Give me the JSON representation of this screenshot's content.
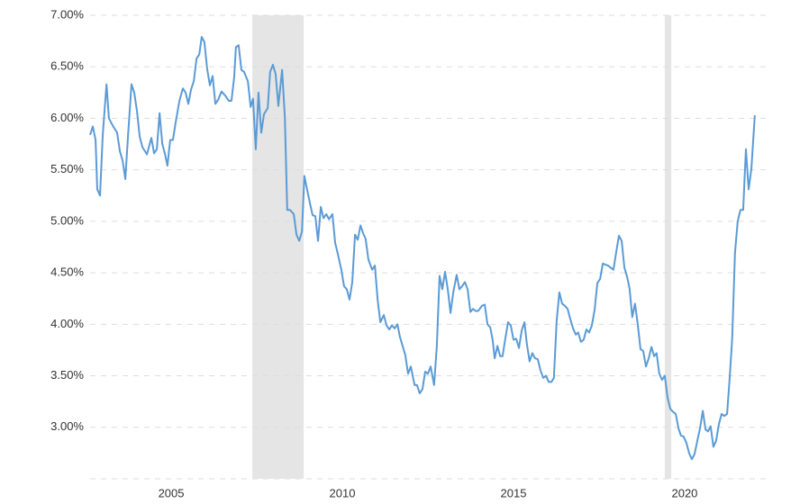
{
  "chart_data": {
    "type": "line",
    "x": [
      2002.63,
      2002.71,
      2002.79,
      2002.84,
      2002.92,
      2003.0,
      2003.11,
      2003.18,
      2003.29,
      2003.42,
      2003.5,
      2003.58,
      2003.66,
      2003.74,
      2003.84,
      2003.92,
      2004.0,
      2004.08,
      2004.16,
      2004.29,
      2004.42,
      2004.5,
      2004.58,
      2004.66,
      2004.74,
      2004.82,
      2004.89,
      2004.97,
      2005.05,
      2005.13,
      2005.24,
      2005.34,
      2005.42,
      2005.5,
      2005.58,
      2005.66,
      2005.74,
      2005.82,
      2005.89,
      2005.97,
      2006.05,
      2006.13,
      2006.21,
      2006.29,
      2006.37,
      2006.47,
      2006.58,
      2006.68,
      2006.76,
      2006.84,
      2006.89,
      2006.97,
      2007.05,
      2007.13,
      2007.24,
      2007.32,
      2007.39,
      2007.47,
      2007.55,
      2007.63,
      2007.71,
      2007.82,
      2007.89,
      2007.97,
      2008.05,
      2008.13,
      2008.24,
      2008.32,
      2008.39,
      2008.47,
      2008.58,
      2008.66,
      2008.74,
      2008.82,
      2008.89,
      2008.97,
      2009.05,
      2009.13,
      2009.21,
      2009.29,
      2009.37,
      2009.45,
      2009.53,
      2009.61,
      2009.71,
      2009.79,
      2009.87,
      2009.97,
      2010.05,
      2010.13,
      2010.21,
      2010.29,
      2010.37,
      2010.45,
      2010.53,
      2010.61,
      2010.68,
      2010.76,
      2010.87,
      2010.95,
      2011.03,
      2011.11,
      2011.21,
      2011.29,
      2011.37,
      2011.45,
      2011.53,
      2011.61,
      2011.68,
      2011.76,
      2011.84,
      2011.92,
      2012.0,
      2012.11,
      2012.18,
      2012.26,
      2012.34,
      2012.42,
      2012.5,
      2012.58,
      2012.68,
      2012.76,
      2012.84,
      2012.92,
      2013.0,
      2013.08,
      2013.16,
      2013.24,
      2013.34,
      2013.42,
      2013.5,
      2013.58,
      2013.66,
      2013.74,
      2013.82,
      2013.89,
      2013.97,
      2014.08,
      2014.16,
      2014.24,
      2014.32,
      2014.39,
      2014.45,
      2014.53,
      2014.61,
      2014.68,
      2014.76,
      2014.84,
      2014.92,
      2015.0,
      2015.08,
      2015.16,
      2015.24,
      2015.32,
      2015.39,
      2015.47,
      2015.55,
      2015.63,
      2015.71,
      2015.79,
      2015.87,
      2015.95,
      2016.03,
      2016.11,
      2016.18,
      2016.26,
      2016.34,
      2016.42,
      2016.5,
      2016.58,
      2016.66,
      2016.74,
      2016.82,
      2016.89,
      2016.97,
      2017.05,
      2017.13,
      2017.21,
      2017.29,
      2017.37,
      2017.45,
      2017.53,
      2017.61,
      2017.68,
      2017.76,
      2017.84,
      2017.92,
      2018.0,
      2018.08,
      2018.16,
      2018.24,
      2018.32,
      2018.39,
      2018.47,
      2018.55,
      2018.63,
      2018.71,
      2018.79,
      2018.87,
      2018.95,
      2019.03,
      2019.11,
      2019.18,
      2019.26,
      2019.34,
      2019.42,
      2019.5,
      2019.58,
      2019.66,
      2019.74,
      2019.82,
      2019.89,
      2019.97,
      2020.05,
      2020.13,
      2020.21,
      2020.29,
      2020.37,
      2020.45,
      2020.53,
      2020.61,
      2020.68,
      2020.76,
      2020.84,
      2020.92,
      2021.0,
      2021.08,
      2021.16,
      2021.24,
      2021.32,
      2021.39,
      2021.47,
      2021.55,
      2021.63,
      2021.71,
      2021.79,
      2021.87,
      2021.95,
      2022.05
    ],
    "series": [
      {
        "color": "#5b9bd5",
        "values": [
          5.84,
          5.92,
          5.79,
          5.31,
          5.25,
          5.84,
          6.33,
          6.0,
          5.93,
          5.86,
          5.68,
          5.59,
          5.41,
          5.84,
          6.33,
          6.25,
          6.07,
          5.82,
          5.72,
          5.65,
          5.81,
          5.66,
          5.7,
          6.05,
          5.75,
          5.65,
          5.54,
          5.79,
          5.79,
          5.96,
          6.17,
          6.29,
          6.25,
          6.14,
          6.28,
          6.36,
          6.58,
          6.62,
          6.79,
          6.74,
          6.48,
          6.32,
          6.41,
          6.14,
          6.18,
          6.26,
          6.22,
          6.17,
          6.17,
          6.4,
          6.69,
          6.71,
          6.47,
          6.45,
          6.36,
          6.11,
          6.19,
          5.7,
          6.25,
          5.86,
          6.04,
          6.1,
          6.45,
          6.52,
          6.43,
          6.12,
          6.47,
          6.01,
          5.11,
          5.11,
          5.07,
          4.87,
          4.81,
          4.9,
          5.44,
          5.31,
          5.18,
          5.06,
          5.05,
          4.81,
          5.14,
          5.03,
          5.07,
          5.02,
          5.07,
          4.79,
          4.68,
          4.53,
          4.37,
          4.34,
          4.24,
          4.41,
          4.87,
          4.82,
          4.96,
          4.88,
          4.83,
          4.63,
          4.53,
          4.57,
          4.24,
          4.02,
          4.09,
          3.99,
          3.95,
          3.99,
          3.96,
          4.0,
          3.88,
          3.79,
          3.7,
          3.52,
          3.59,
          3.41,
          3.41,
          3.33,
          3.37,
          3.54,
          3.52,
          3.59,
          3.41,
          3.79,
          4.47,
          4.34,
          4.51,
          4.34,
          4.11,
          4.31,
          4.48,
          4.34,
          4.37,
          4.41,
          4.34,
          4.12,
          4.15,
          4.13,
          4.13,
          4.18,
          4.19,
          4.0,
          3.97,
          3.85,
          3.67,
          3.79,
          3.69,
          3.69,
          3.86,
          4.02,
          3.99,
          3.85,
          3.86,
          3.77,
          3.94,
          4.02,
          3.81,
          3.64,
          3.72,
          3.67,
          3.66,
          3.55,
          3.48,
          3.5,
          3.44,
          3.44,
          3.48,
          4.03,
          4.31,
          4.2,
          4.18,
          4.15,
          4.05,
          3.96,
          3.9,
          3.92,
          3.83,
          3.85,
          3.95,
          3.92,
          3.99,
          4.14,
          4.4,
          4.44,
          4.59,
          4.58,
          4.57,
          4.55,
          4.53,
          4.7,
          4.86,
          4.81,
          4.55,
          4.46,
          4.35,
          4.07,
          4.2,
          4.0,
          3.76,
          3.74,
          3.59,
          3.67,
          3.78,
          3.69,
          3.72,
          3.52,
          3.46,
          3.5,
          3.29,
          3.18,
          3.15,
          3.13,
          2.99,
          2.92,
          2.91,
          2.85,
          2.75,
          2.69,
          2.74,
          2.87,
          2.99,
          3.16,
          2.98,
          2.96,
          3.01,
          2.81,
          2.87,
          3.03,
          3.13,
          3.11,
          3.13,
          3.5,
          3.87,
          4.69,
          5.0,
          5.11,
          5.11,
          5.7,
          5.31,
          5.51,
          6.03
        ]
      }
    ],
    "recessions": [
      [
        2007.37,
        2008.87
      ],
      [
        2019.42,
        2019.61
      ]
    ],
    "recession_color": "#e5e5e5",
    "xlim": [
      2002.63,
      2022.37
    ],
    "xticks": [
      2005,
      2010,
      2015,
      2020
    ],
    "ylim": [
      2.5,
      7.0
    ],
    "yticks": [
      {
        "value": 3.0,
        "label": "3.00%"
      },
      {
        "value": 3.5,
        "label": "3.50%"
      },
      {
        "value": 4.0,
        "label": "4.00%"
      },
      {
        "value": 4.5,
        "label": "4.50%"
      },
      {
        "value": 5.0,
        "label": "5.00%"
      },
      {
        "value": 5.5,
        "label": "5.50%"
      },
      {
        "value": 6.0,
        "label": "6.00%"
      },
      {
        "value": 6.5,
        "label": "6.50%"
      },
      {
        "value": 7.0,
        "label": "7.00%"
      }
    ],
    "grid": true
  }
}
